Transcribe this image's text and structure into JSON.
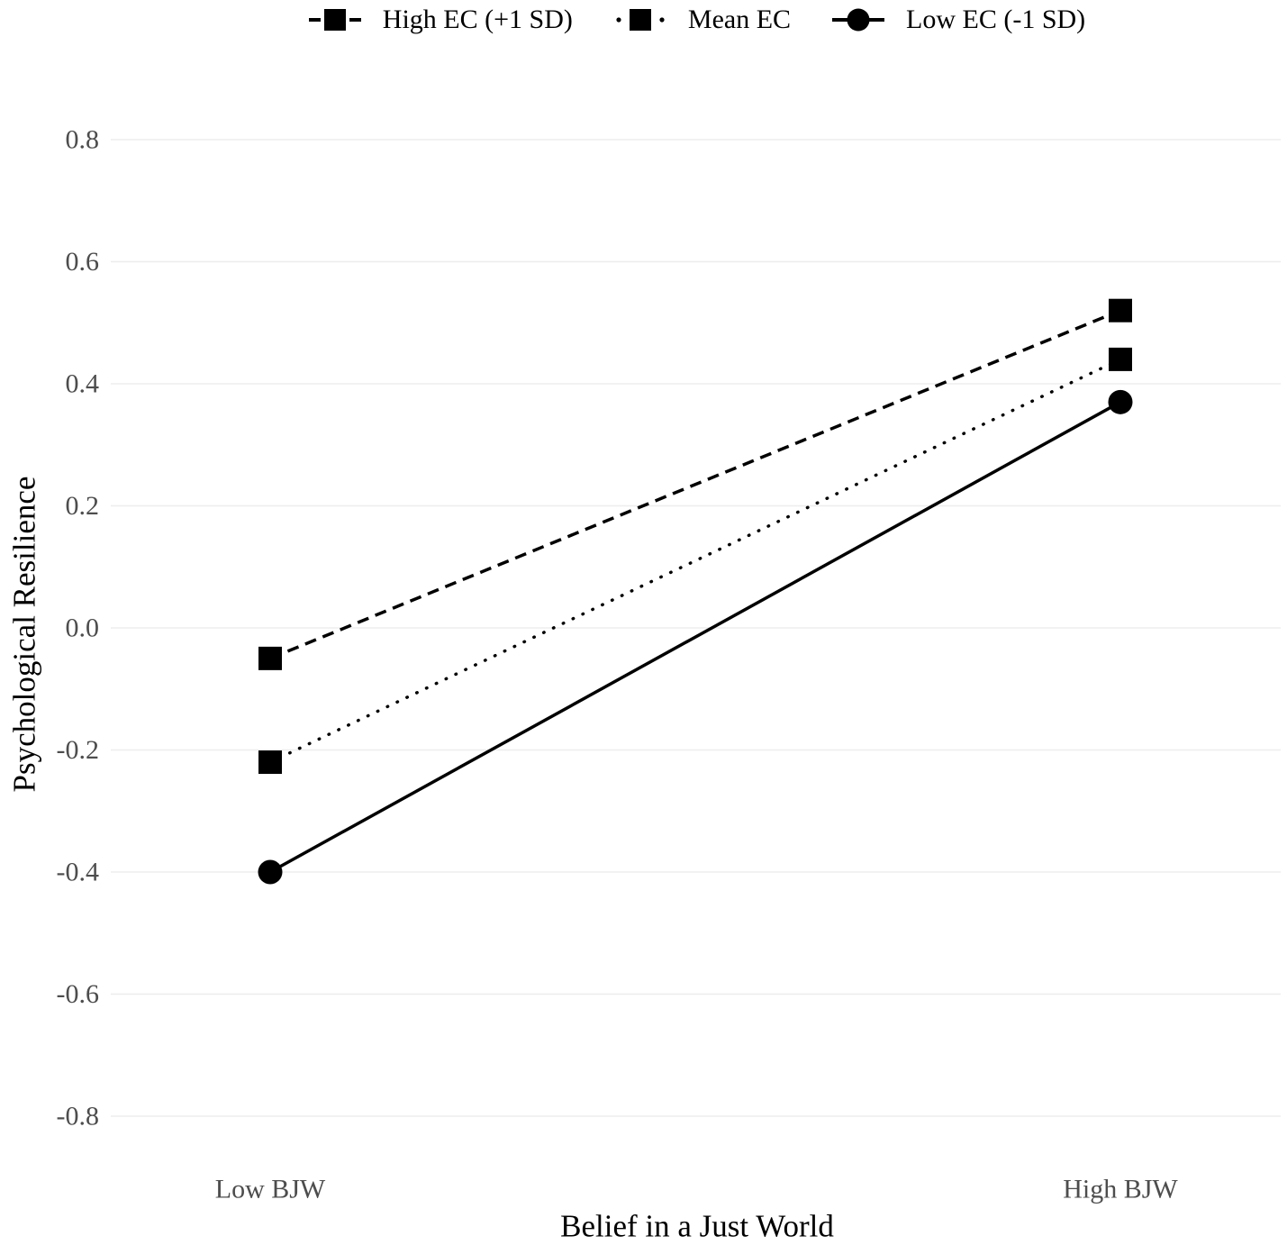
{
  "chart_data": {
    "type": "line",
    "title": "",
    "xlabel": "Belief in a Just World",
    "ylabel": "Psychological Resilience",
    "categories": [
      "Low BJW",
      "High BJW"
    ],
    "series": [
      {
        "name": "High EC (+1 SD)",
        "values": [
          -0.05,
          0.52
        ],
        "marker": "square",
        "line_style": "dashed",
        "color": "#000000"
      },
      {
        "name": "Mean EC",
        "values": [
          -0.22,
          0.44
        ],
        "marker": "square",
        "line_style": "dotted",
        "color": "#000000"
      },
      {
        "name": "Low EC (-1 SD)",
        "values": [
          -0.4,
          0.37
        ],
        "marker": "circle",
        "line_style": "solid",
        "color": "#000000"
      }
    ],
    "ylim": [
      -0.8,
      0.8
    ],
    "yticks": [
      0.8,
      0.6,
      0.4,
      0.2,
      0.0,
      -0.2,
      -0.4,
      -0.6,
      -0.8
    ],
    "ytick_labels": [
      "0.8",
      "0.6",
      "0.4",
      "0.2",
      "0.0",
      "-0.2",
      "-0.4",
      "-0.6",
      "-0.8"
    ],
    "grid": "horizontal-major-only",
    "legend_position": "top-center",
    "colors": {
      "background": "#ffffff",
      "series": "#000000",
      "tick_label": "#4d4d4d",
      "gridline": "#ededed",
      "axis_title": "#000000",
      "legend_text": "#000000"
    }
  }
}
